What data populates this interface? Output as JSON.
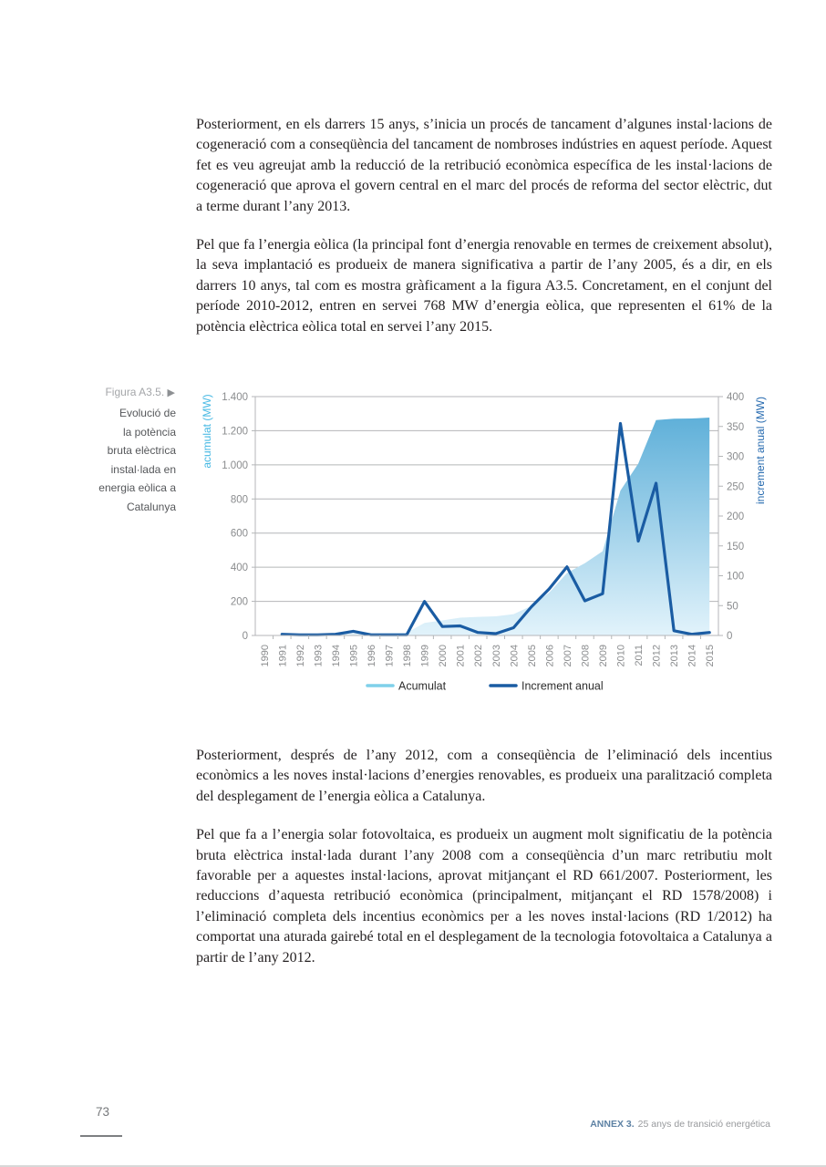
{
  "page": {
    "paragraphs": {
      "p1": "Posteriorment, en els darrers 15 anys, s’inicia un procés de tancament d’algunes instal·lacions de cogeneració com a conseqüència del tancament de nombroses indústries en aquest període. Aquest fet es veu agreujat amb la reducció de la retribució econòmica específica de les instal·lacions de cogeneració que aprova el govern central en el marc del procés de reforma del sector elèctric, dut a terme durant l’any 2013.",
      "p2": "Pel que fa l’energia eòlica (la principal font d’energia renovable en termes de creixement absolut), la seva implantació es produeix de manera significativa a partir de l’any 2005, és a dir, en els darrers 10 anys, tal com es mostra gràficament a la figura A3.5. Concretament, en el conjunt del període 2010-2012, entren en servei 768 MW d’energia eòlica, que representen el 61% de la potència elèctrica eòlica total en servei l’any 2015.",
      "p3": "Posteriorment, després de l’any 2012, com a conseqüència de l’eliminació dels incentius econòmics a les noves instal·lacions d’energies renovables, es produeix una paralització completa del desplegament de l’energia eòlica a Catalunya.",
      "p4": "Pel que fa a l’energia solar fotovoltaica, es produeix un augment molt significatiu de la potència bruta elèctrica instal·lada durant l’any 2008 com a conseqüència d’un marc retributiu molt favorable per a aquestes instal·lacions, aprovat mitjançant el RD 661/2007. Posteriorment, les reduccions d’aquesta retribució econòmica (principalment, mitjançant el RD 1578/2008) i l’eliminació completa dels incentius econòmics per a les noves instal·lacions (RD 1/2012) ha comportat una aturada gairebé total en el desplegament de la tecnologia fotovoltaica a Catalunya a partir de l’any 2012."
    },
    "figure": {
      "label": "Figura A3.5.",
      "arrow": "▶",
      "caption": "Evolució de\nla potència\nbruta elèctrica\ninstal·lada en\nenergia eòlica a\nCatalunya"
    },
    "footer": {
      "page_number": "73",
      "annex": "ANNEX 3.",
      "title": "25 anys de transició energética"
    }
  },
  "chart_data": {
    "type": "area",
    "x": [
      "1990",
      "1991",
      "1992",
      "1993",
      "1994",
      "1995",
      "1996",
      "1997",
      "1998",
      "1999",
      "2000",
      "2001",
      "2002",
      "2003",
      "2004",
      "2005",
      "2006",
      "2007",
      "2008",
      "2009",
      "2010",
      "2011",
      "2012",
      "2013",
      "2014",
      "2015"
    ],
    "series": [
      {
        "name": "Acumulat",
        "type": "area",
        "axis": "left",
        "values": [
          0,
          2,
          3,
          4,
          6,
          13,
          14,
          15,
          16,
          73,
          88,
          104,
          109,
          112,
          125,
          173,
          251,
          366,
          424,
          494,
          849,
          1007,
          1262,
          1270,
          1272,
          1277
        ]
      },
      {
        "name": "Increment anual",
        "type": "line",
        "axis": "right",
        "values": [
          null,
          2,
          1,
          1,
          2,
          7,
          1,
          1,
          1,
          57,
          15,
          16,
          5,
          3,
          13,
          48,
          78,
          115,
          58,
          70,
          355,
          158,
          255,
          8,
          2,
          5
        ]
      }
    ],
    "left_axis": {
      "title": "acumulat (MW)",
      "min": 0,
      "max": 1400,
      "tick_labels": [
        "0",
        "200",
        "400",
        "600",
        "800",
        "1.000",
        "1.200",
        "1.400"
      ]
    },
    "right_axis": {
      "title": "increment anual (MW)",
      "min": 0,
      "max": 400,
      "tick_labels": [
        "0",
        "50",
        "100",
        "150",
        "200",
        "250",
        "300",
        "350",
        "400"
      ]
    },
    "legend": [
      "Acumulat",
      "Increment anual"
    ],
    "legend_position": "bottom-center",
    "grid": true,
    "colors": {
      "area_top": "#5fb0d9",
      "area_bottom": "#e2f3fb",
      "line": "#1a5ca3",
      "legend_area_swatch": "#7fd0ea",
      "left_title": "#45b8e3",
      "right_title": "#2368ae",
      "tick_text": "#8a8c8e",
      "grid": "#b4b6b8",
      "legend_text": "#2e2e2e"
    }
  }
}
